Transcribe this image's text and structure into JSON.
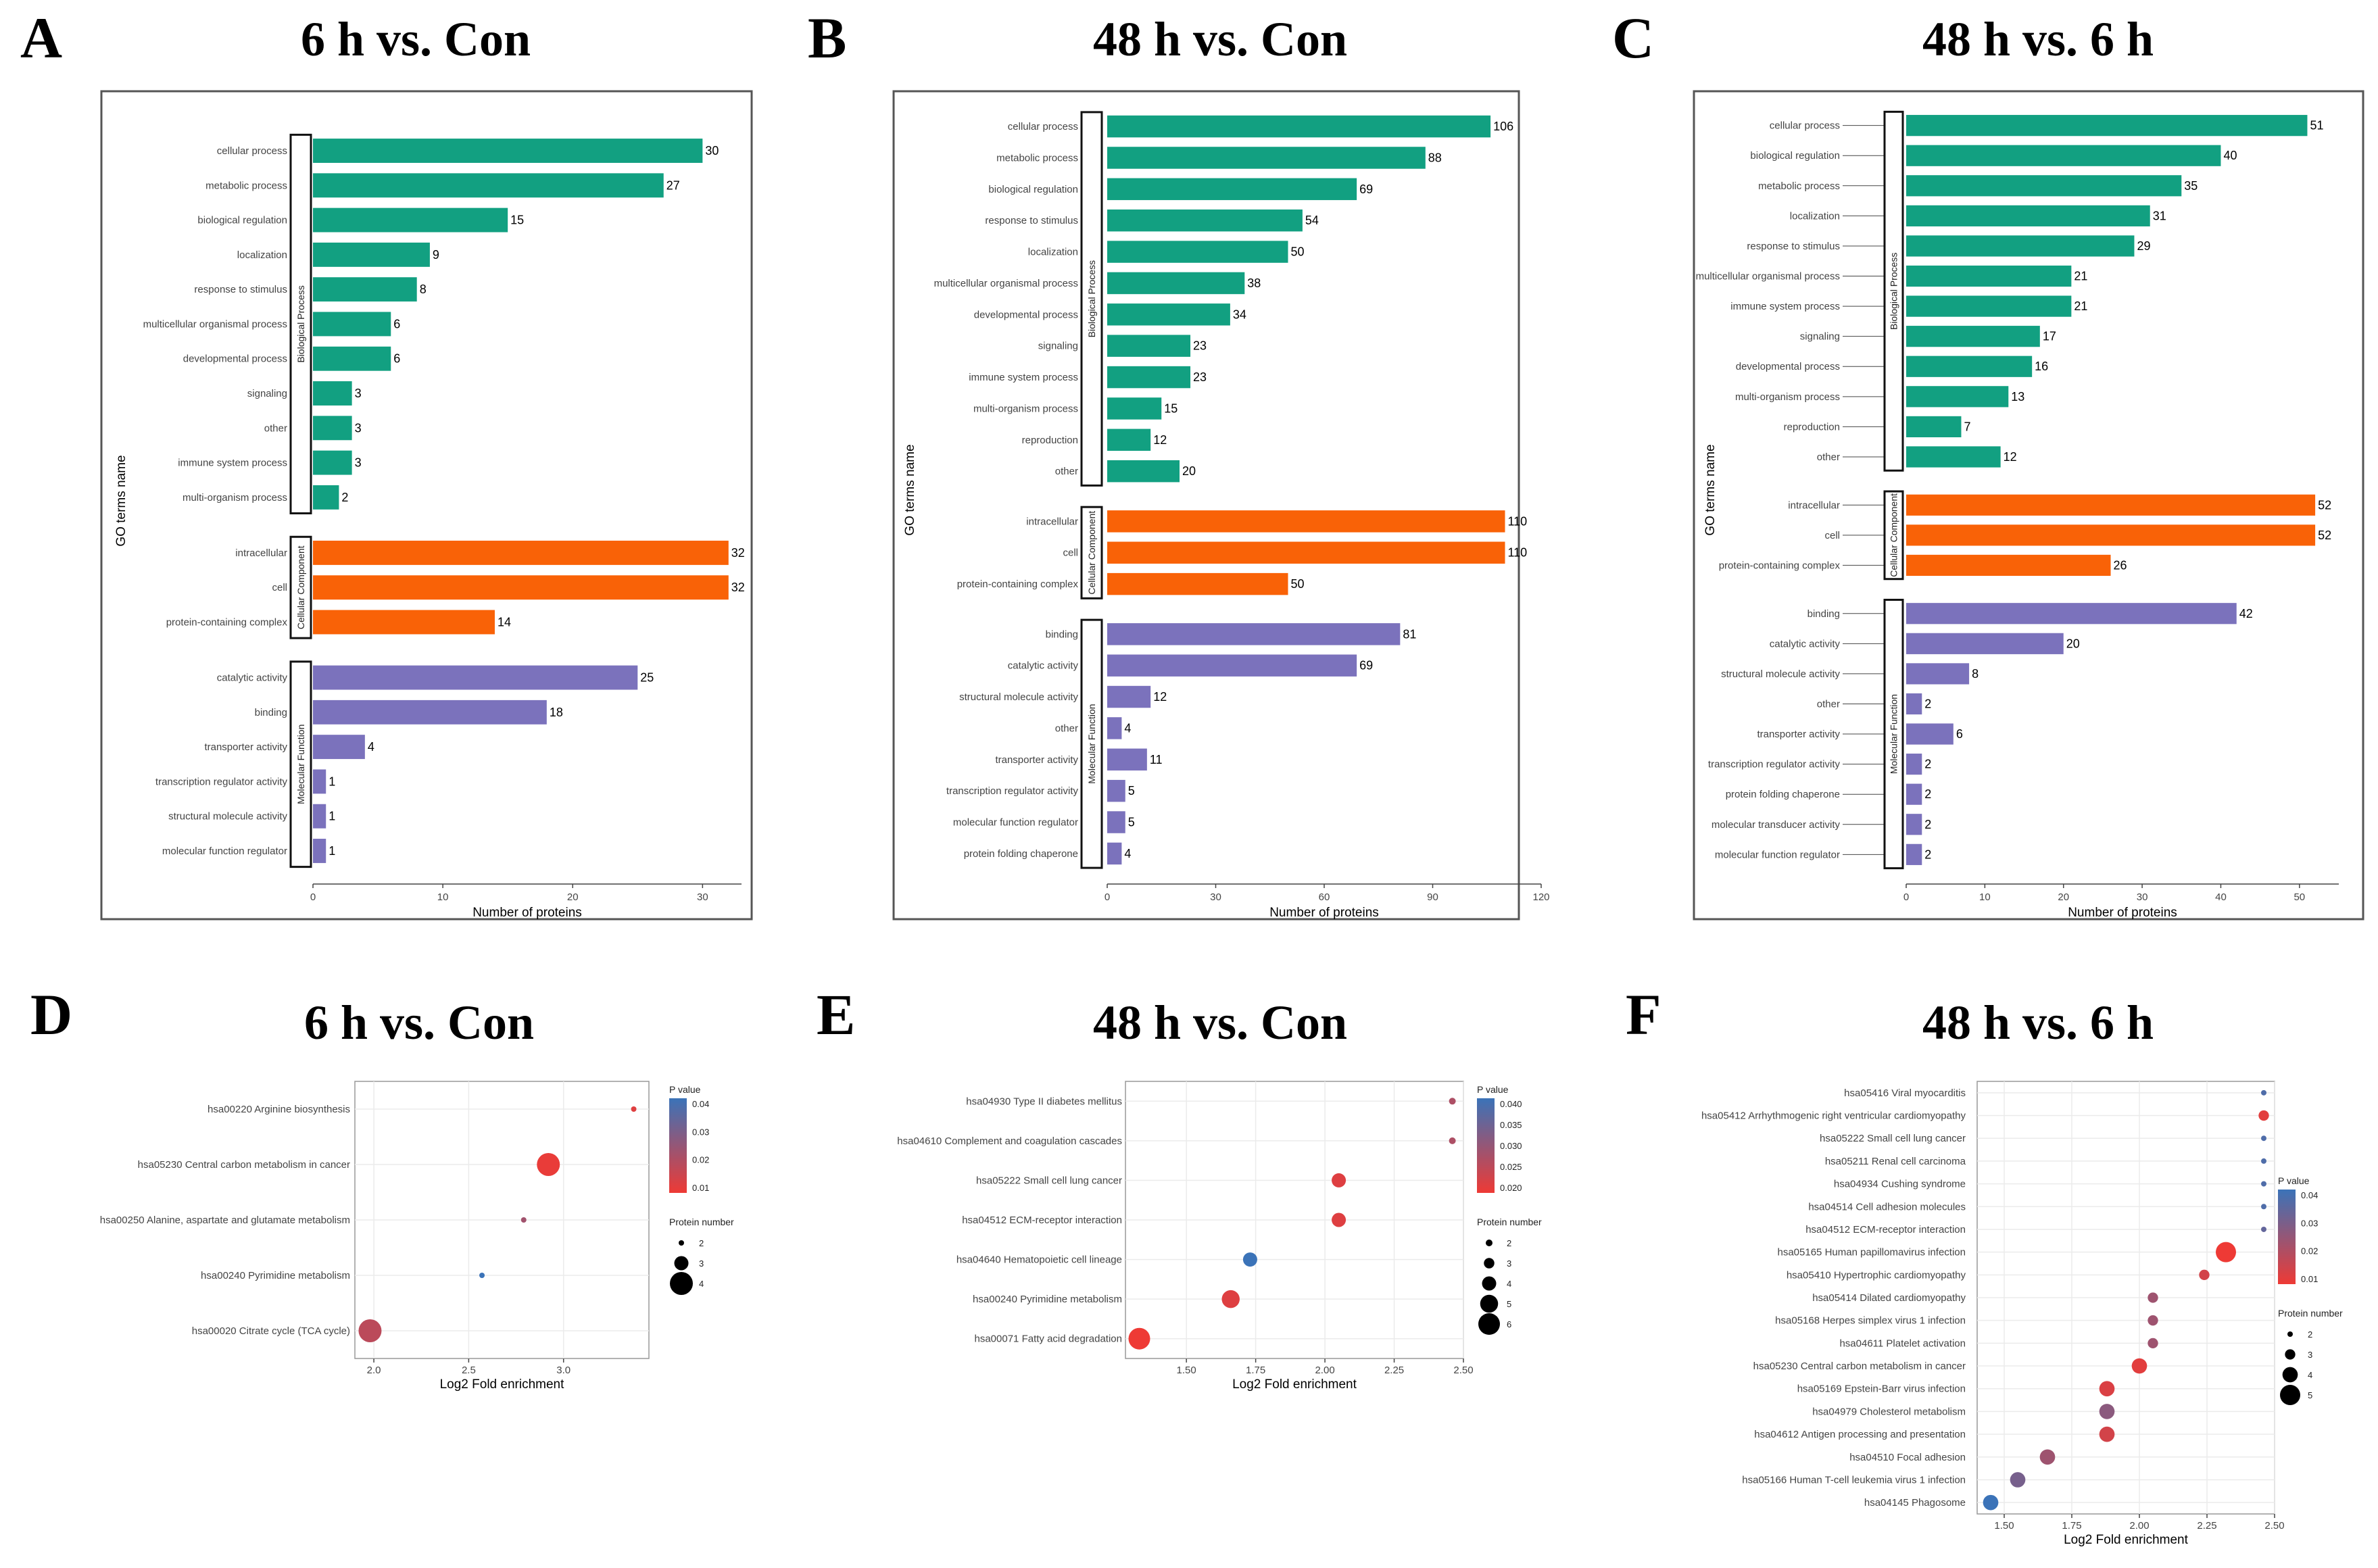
{
  "colors": {
    "biological_process": "#12a081",
    "cellular_component": "#f96207",
    "molecular_function": "#7b72bc",
    "p_low": "#ee3a35",
    "p_high": "#3b73b8"
  },
  "chart_data": [
    {
      "type": "bar",
      "letter": "A",
      "title": "6 h vs. Con",
      "xlabel": "Number of proteins",
      "ylabel": "GO terms name",
      "xlim": [
        0,
        33
      ],
      "xticks": [
        0,
        10,
        20,
        30
      ],
      "groups": [
        {
          "name": "Biological Process",
          "color_key": "biological_process",
          "categories": [
            "cellular process",
            "metabolic process",
            "biological regulation",
            "localization",
            "response to stimulus",
            "multicellular organismal process",
            "developmental process",
            "signaling",
            "other",
            "immune system process",
            "multi-organism process"
          ],
          "values": [
            30,
            27,
            15,
            9,
            8,
            6,
            6,
            3,
            3,
            3,
            2
          ]
        },
        {
          "name": "Cellular Component",
          "color_key": "cellular_component",
          "categories": [
            "intracellular",
            "cell",
            "protein-containing complex"
          ],
          "values": [
            32,
            32,
            14
          ]
        },
        {
          "name": "Molecular Function",
          "color_key": "molecular_function",
          "categories": [
            "catalytic activity",
            "binding",
            "transporter activity",
            "transcription regulator activity",
            "structural molecule activity",
            "molecular function regulator"
          ],
          "values": [
            25,
            18,
            4,
            1,
            1,
            1
          ]
        }
      ]
    },
    {
      "type": "bar",
      "letter": "B",
      "title": "48 h vs. Con",
      "xlabel": "Number of proteins",
      "ylabel": "GO terms name",
      "xlim": [
        0,
        120
      ],
      "xticks": [
        0,
        30,
        60,
        90,
        120
      ],
      "groups": [
        {
          "name": "Biological Process",
          "color_key": "biological_process",
          "categories": [
            "cellular process",
            "metabolic process",
            "biological regulation",
            "response to stimulus",
            "localization",
            "multicellular organismal process",
            "developmental process",
            "signaling",
            "immune system process",
            "multi-organism process",
            "reproduction",
            "other"
          ],
          "values": [
            106,
            88,
            69,
            54,
            50,
            38,
            34,
            23,
            23,
            15,
            12,
            20
          ]
        },
        {
          "name": "Cellular Component",
          "color_key": "cellular_component",
          "categories": [
            "intracellular",
            "cell",
            "protein-containing complex"
          ],
          "values": [
            110,
            110,
            50
          ]
        },
        {
          "name": "Molecular Function",
          "color_key": "molecular_function",
          "categories": [
            "binding",
            "catalytic activity",
            "structural molecule activity",
            "other",
            "transporter activity",
            "transcription regulator activity",
            "molecular function regulator",
            "protein folding chaperone"
          ],
          "values": [
            81,
            69,
            12,
            4,
            11,
            5,
            5,
            4
          ]
        }
      ]
    },
    {
      "type": "bar",
      "letter": "C",
      "title": "48 h vs. 6 h",
      "xlabel": "Number of proteins",
      "ylabel": "GO terms name",
      "xlim": [
        0,
        55
      ],
      "xticks": [
        0,
        10,
        20,
        30,
        40,
        50
      ],
      "groups": [
        {
          "name": "Biological Process",
          "color_key": "biological_process",
          "categories": [
            "cellular process",
            "biological regulation",
            "metabolic process",
            "localization",
            "response to stimulus",
            "multicellular organismal process",
            "immune system process",
            "signaling",
            "developmental process",
            "multi-organism process",
            "reproduction",
            "other"
          ],
          "values": [
            51,
            40,
            35,
            31,
            29,
            21,
            21,
            17,
            16,
            13,
            7,
            12
          ]
        },
        {
          "name": "Cellular Component",
          "color_key": "cellular_component",
          "categories": [
            "intracellular",
            "cell",
            "protein-containing complex"
          ],
          "values": [
            52,
            52,
            26
          ]
        },
        {
          "name": "Molecular Function",
          "color_key": "molecular_function",
          "categories": [
            "binding",
            "catalytic activity",
            "structural molecule activity",
            "other",
            "transporter activity",
            "transcription regulator activity",
            "protein folding chaperone",
            "molecular transducer activity",
            "molecular function regulator"
          ],
          "values": [
            42,
            20,
            8,
            2,
            6,
            2,
            2,
            2,
            2
          ]
        }
      ]
    },
    {
      "type": "scatter",
      "letter": "D",
      "title": "6 h vs. Con",
      "xlabel": "Log2 Fold enrichment",
      "xlim": [
        1.9,
        3.45
      ],
      "xticks": [
        "2.0",
        "2.5",
        "3.0"
      ],
      "pvalue_range": [
        0.005,
        0.04
      ],
      "pvalue_legend_title": "P value",
      "pvalue_legend_ticks": [
        "0.04",
        "0.03",
        "0.02",
        "0.01"
      ],
      "size_legend_title": "Protein number",
      "size_legend_ticks": [
        "2",
        "3",
        "4"
      ],
      "size_range": [
        2,
        4
      ],
      "points": [
        {
          "label": "hsa00220 Arginine biosynthesis",
          "x": 3.37,
          "p": 0.008,
          "n": 2
        },
        {
          "label": "hsa05230 Central carbon metabolism in cancer",
          "x": 2.92,
          "p": 0.006,
          "n": 4
        },
        {
          "label": "hsa00250 Alanine, aspartate and glutamate metabolism",
          "x": 2.79,
          "p": 0.02,
          "n": 2
        },
        {
          "label": "hsa00240 Pyrimidine metabolism",
          "x": 2.57,
          "p": 0.04,
          "n": 2
        },
        {
          "label": "hsa00020 Citrate cycle (TCA cycle)",
          "x": 1.98,
          "p": 0.015,
          "n": 4
        }
      ]
    },
    {
      "type": "scatter",
      "letter": "E",
      "title": "48 h vs. Con",
      "xlabel": "Log2 Fold enrichment",
      "xlim": [
        1.28,
        2.5
      ],
      "xticks": [
        "1.50",
        "1.75",
        "2.00",
        "2.25",
        "2.50"
      ],
      "pvalue_range": [
        0.02,
        0.042
      ],
      "pvalue_legend_title": "P value",
      "pvalue_legend_ticks": [
        "0.040",
        "0.035",
        "0.030",
        "0.025",
        "0.020"
      ],
      "size_legend_title": "Protein number",
      "size_legend_ticks": [
        "2",
        "3",
        "4",
        "5",
        "6"
      ],
      "size_range": [
        2,
        6
      ],
      "points": [
        {
          "label": "hsa04930 Type II diabetes mellitus",
          "x": 2.46,
          "p": 0.028,
          "n": 2
        },
        {
          "label": "hsa04610 Complement and coagulation cascades",
          "x": 2.46,
          "p": 0.028,
          "n": 2
        },
        {
          "label": "hsa05222 Small cell lung cancer",
          "x": 2.05,
          "p": 0.022,
          "n": 4
        },
        {
          "label": "hsa04512 ECM-receptor interaction",
          "x": 2.05,
          "p": 0.022,
          "n": 4
        },
        {
          "label": "hsa04640 Hematopoietic cell lineage",
          "x": 1.73,
          "p": 0.042,
          "n": 4
        },
        {
          "label": "hsa00240 Pyrimidine metabolism",
          "x": 1.66,
          "p": 0.022,
          "n": 5
        },
        {
          "label": "hsa00071 Fatty acid degradation",
          "x": 1.33,
          "p": 0.02,
          "n": 6
        }
      ]
    },
    {
      "type": "scatter",
      "letter": "F",
      "title": "48 h vs. 6 h",
      "xlabel": "Log2 Fold enrichment",
      "xlim": [
        1.4,
        2.5
      ],
      "xticks": [
        "1.50",
        "1.75",
        "2.00",
        "2.25",
        "2.50"
      ],
      "pvalue_range": [
        0.005,
        0.05
      ],
      "pvalue_legend_title": "P value",
      "pvalue_legend_ticks": [
        "0.04",
        "0.03",
        "0.02",
        "0.01"
      ],
      "size_legend_title": "Protein number",
      "size_legend_ticks": [
        "2",
        "3",
        "4",
        "5"
      ],
      "size_range": [
        2,
        5
      ],
      "points": [
        {
          "label": "hsa05416 Viral myocarditis",
          "x": 2.46,
          "p": 0.045,
          "n": 2
        },
        {
          "label": "hsa05412 Arrhythmogenic right ventricular cardiomyopathy",
          "x": 2.46,
          "p": 0.008,
          "n": 3
        },
        {
          "label": "hsa05222 Small cell lung cancer",
          "x": 2.46,
          "p": 0.045,
          "n": 2
        },
        {
          "label": "hsa05211 Renal cell carcinoma",
          "x": 2.46,
          "p": 0.045,
          "n": 2
        },
        {
          "label": "hsa04934 Cushing syndrome",
          "x": 2.46,
          "p": 0.045,
          "n": 2
        },
        {
          "label": "hsa04514 Cell adhesion molecules",
          "x": 2.46,
          "p": 0.045,
          "n": 2
        },
        {
          "label": "hsa04512 ECM-receptor interaction",
          "x": 2.46,
          "p": 0.04,
          "n": 2
        },
        {
          "label": "hsa05165 Human papillomavirus infection",
          "x": 2.32,
          "p": 0.005,
          "n": 5
        },
        {
          "label": "hsa05410 Hypertrophic cardiomyopathy",
          "x": 2.24,
          "p": 0.012,
          "n": 3
        },
        {
          "label": "hsa05414 Dilated cardiomyopathy",
          "x": 2.05,
          "p": 0.025,
          "n": 3
        },
        {
          "label": "hsa05168 Herpes simplex virus 1 infection",
          "x": 2.05,
          "p": 0.025,
          "n": 3
        },
        {
          "label": "hsa04611 Platelet activation",
          "x": 2.05,
          "p": 0.025,
          "n": 3
        },
        {
          "label": "hsa05230 Central carbon metabolism in cancer",
          "x": 2.0,
          "p": 0.008,
          "n": 4
        },
        {
          "label": "hsa05169 Epstein-Barr virus infection",
          "x": 1.88,
          "p": 0.01,
          "n": 4
        },
        {
          "label": "hsa04979 Cholesterol metabolism",
          "x": 1.88,
          "p": 0.03,
          "n": 4
        },
        {
          "label": "hsa04612 Antigen processing and presentation",
          "x": 1.88,
          "p": 0.012,
          "n": 4
        },
        {
          "label": "hsa04510 Focal adhesion",
          "x": 1.66,
          "p": 0.025,
          "n": 4
        },
        {
          "label": "hsa05166 Human T-cell leukemia virus 1 infection",
          "x": 1.55,
          "p": 0.035,
          "n": 4
        },
        {
          "label": "hsa04145 Phagosome",
          "x": 1.45,
          "p": 0.05,
          "n": 4
        }
      ]
    }
  ]
}
